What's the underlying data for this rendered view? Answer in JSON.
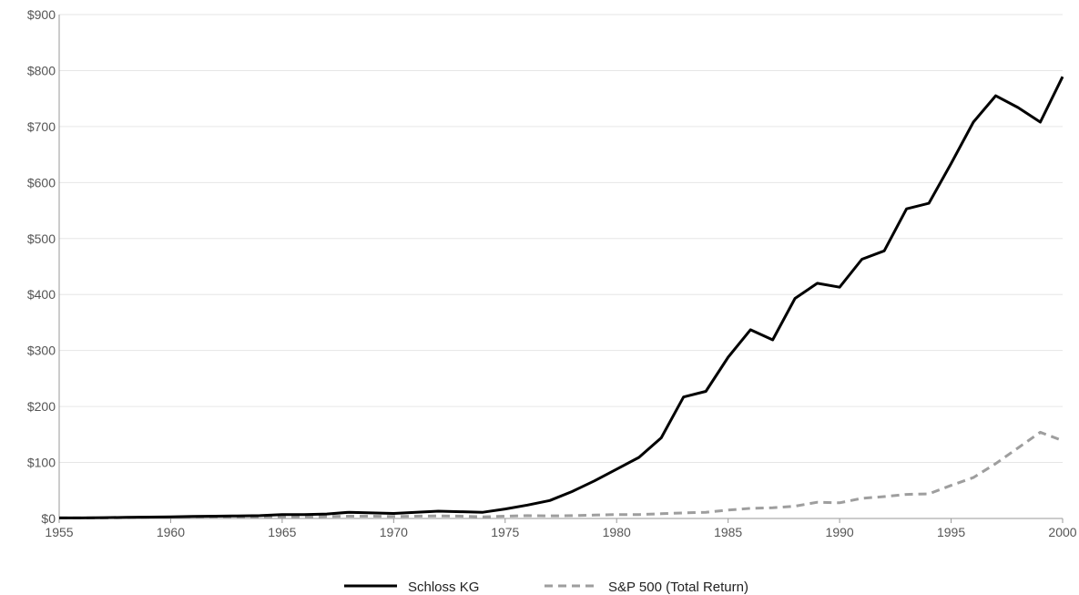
{
  "chart_data": {
    "type": "line",
    "title": "",
    "xlabel": "",
    "ylabel": "",
    "xlim": [
      1955,
      2000
    ],
    "ylim": [
      0,
      900
    ],
    "x_ticks": [
      1955,
      1960,
      1965,
      1970,
      1975,
      1980,
      1985,
      1990,
      1995,
      2000
    ],
    "x_tick_labels": [
      "1955",
      "1960",
      "1965",
      "1970",
      "1975",
      "1980",
      "1985",
      "1990",
      "1995",
      "2000"
    ],
    "y_ticks": [
      0,
      100,
      200,
      300,
      400,
      500,
      600,
      700,
      800,
      900
    ],
    "y_tick_labels": [
      "$0",
      "$100",
      "$200",
      "$300",
      "$400",
      "$500",
      "$600",
      "$700",
      "$800",
      "$900"
    ],
    "grid": true,
    "legend_position": "bottom-center",
    "x": [
      1955,
      1956,
      1957,
      1958,
      1959,
      1960,
      1961,
      1962,
      1963,
      1964,
      1965,
      1966,
      1967,
      1968,
      1969,
      1970,
      1971,
      1972,
      1973,
      1974,
      1975,
      1976,
      1977,
      1978,
      1979,
      1980,
      1981,
      1982,
      1983,
      1984,
      1985,
      1986,
      1987,
      1988,
      1989,
      1990,
      1991,
      1992,
      1993,
      1994,
      1995,
      1996,
      1997,
      1998,
      1999,
      2000
    ],
    "series": [
      {
        "name": "Schloss KG",
        "color": "#000000",
        "dash": "solid",
        "values": [
          1,
          1,
          1.5,
          2,
          2.5,
          3,
          3.5,
          4,
          4.5,
          5,
          7,
          7,
          8,
          11,
          10,
          9,
          11,
          13,
          12,
          11,
          17,
          24,
          32,
          48,
          67,
          88,
          109,
          144,
          217,
          227,
          288,
          337,
          319,
          393,
          420,
          413,
          463,
          478,
          553,
          563,
          634,
          708,
          755,
          734,
          708,
          789
        ]
      },
      {
        "name": "S&P 500 (Total Return)",
        "color": "#9e9e9e",
        "dash": "dashed",
        "values": [
          1,
          1,
          1,
          1.5,
          1.5,
          2,
          2,
          2,
          2.5,
          3,
          3,
          3,
          3.5,
          4,
          4,
          3.5,
          4,
          4.5,
          4,
          3,
          4,
          5,
          4.5,
          5,
          6,
          7,
          7,
          8.5,
          10,
          11,
          15,
          18,
          19,
          22,
          29,
          28,
          36,
          39,
          43,
          44,
          59,
          73,
          98,
          126,
          154,
          139
        ]
      }
    ]
  }
}
